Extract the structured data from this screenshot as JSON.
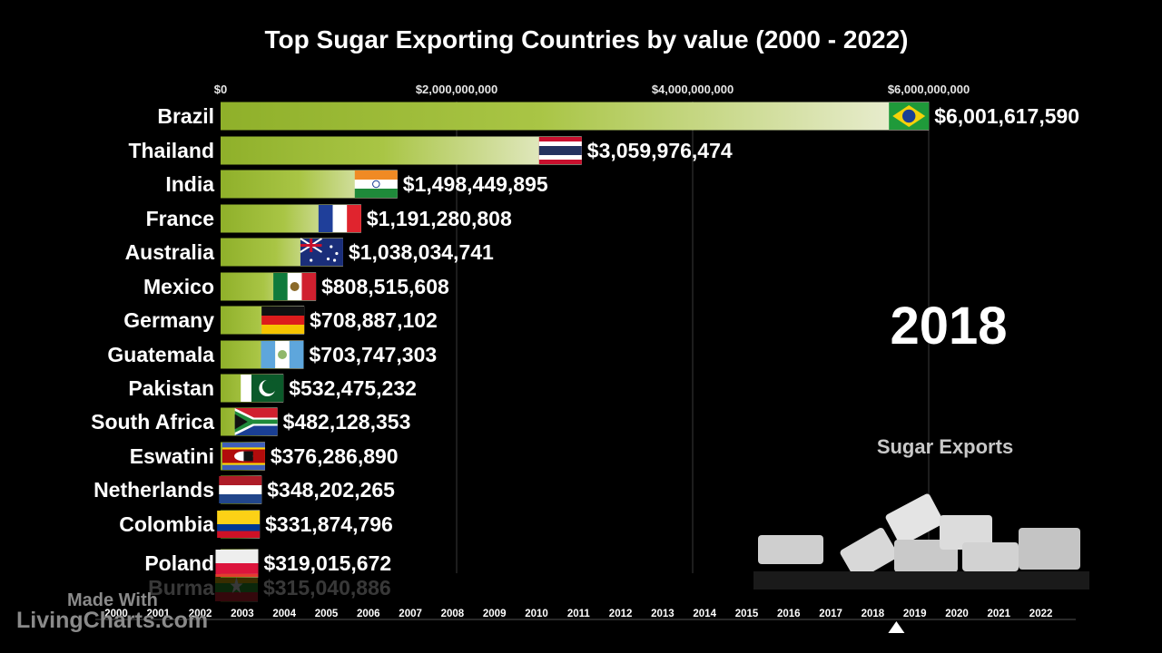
{
  "title": "Top Sugar Exporting Countries by value (2000 - 2022)",
  "current_year": "2018",
  "caption": "Sugar Exports",
  "watermark": {
    "line1": "Made With",
    "line2": "LivingCharts.com"
  },
  "colors": {
    "bar_dark": "#8fb02a",
    "bar_light": "#eef0dc",
    "background": "#000000"
  },
  "chart_data": {
    "type": "bar",
    "orientation": "horizontal",
    "year": 2018,
    "title": "Top Sugar Exporting Countries by value (2000 - 2022)",
    "x_ticks": [
      0,
      2000000000,
      4000000000,
      6000000000
    ],
    "x_tick_labels": [
      "$0",
      "$2,000,000,000",
      "$4,000,000,000",
      "$6,000,000,000"
    ],
    "xlim": [
      0,
      6000000000
    ],
    "grid": true,
    "categories": [
      "Brazil",
      "Thailand",
      "India",
      "France",
      "Australia",
      "Mexico",
      "Germany",
      "Guatemala",
      "Pakistan",
      "South Africa",
      "Eswatini",
      "Netherlands",
      "Colombia",
      "Poland",
      "Burma"
    ],
    "values": [
      6001617590,
      3059976474,
      1498449895,
      1191280808,
      1038034741,
      808515608,
      708887102,
      703747303,
      532475232,
      482128353,
      376286890,
      348202265,
      331874796,
      319015672,
      315040886
    ],
    "value_labels": [
      "$6,001,617,590",
      "$3,059,976,474",
      "$1,498,449,895",
      "$1,191,280,808",
      "$1,038,034,741",
      "$808,515,608",
      "$708,887,102",
      "$703,747,303",
      "$532,475,232",
      "$482,128,353",
      "$376,286,890",
      "$348,202,265",
      "$331,874,796",
      "$319,015,672",
      "$315,040,886"
    ],
    "flags": [
      "brazil-flag",
      "thailand-flag",
      "india-flag",
      "france-flag",
      "australia-flag",
      "mexico-flag",
      "germany-flag",
      "guatemala-flag",
      "pakistan-flag",
      "south-africa-flag",
      "eswatini-flag",
      "netherlands-flag",
      "colombia-flag",
      "poland-flag",
      "burma-flag"
    ],
    "timeline_years": [
      "2000",
      "2001",
      "2002",
      "2003",
      "2004",
      "2005",
      "2006",
      "2007",
      "2008",
      "2009",
      "2010",
      "2011",
      "2012",
      "2013",
      "2014",
      "2015",
      "2016",
      "2017",
      "2018",
      "2019",
      "2020",
      "2021",
      "2022"
    ]
  }
}
